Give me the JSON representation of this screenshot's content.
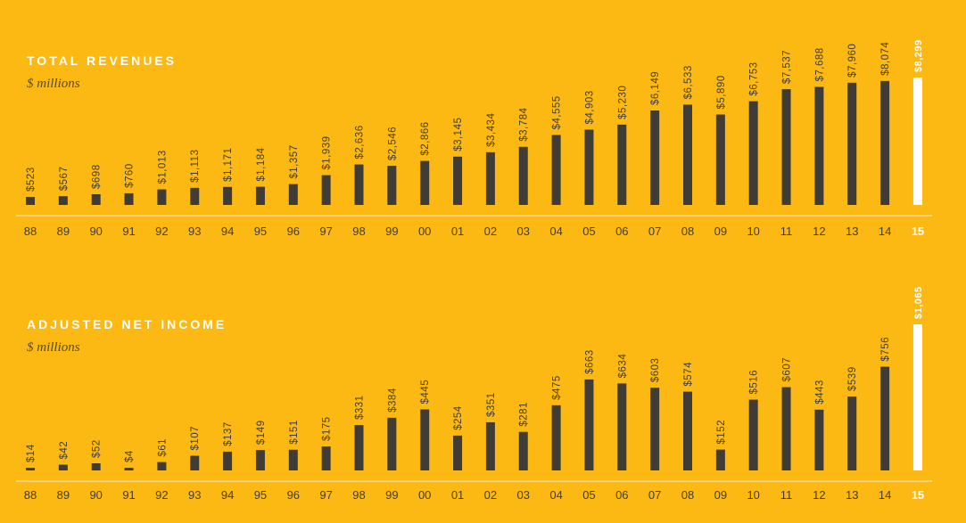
{
  "chart_data": [
    {
      "type": "bar",
      "title": "TOTAL REVENUES",
      "subtitle": "$ millions",
      "categories": [
        "88",
        "89",
        "90",
        "91",
        "92",
        "93",
        "94",
        "95",
        "96",
        "97",
        "98",
        "99",
        "00",
        "01",
        "02",
        "03",
        "04",
        "05",
        "06",
        "07",
        "08",
        "09",
        "10",
        "11",
        "12",
        "13",
        "14",
        "15"
      ],
      "values": [
        523,
        567,
        698,
        760,
        1013,
        1113,
        1171,
        1184,
        1357,
        1939,
        2636,
        2546,
        2866,
        3145,
        3434,
        3784,
        4555,
        4903,
        5230,
        6149,
        6533,
        5890,
        6753,
        7537,
        7688,
        7960,
        8074,
        8299
      ],
      "value_labels": [
        "$523",
        "$567",
        "$698",
        "$760",
        "$1,013",
        "$1,113",
        "$1,171",
        "$1,184",
        "$1,357",
        "$1,939",
        "$2,636",
        "$2,546",
        "$2,866",
        "$3,145",
        "$3,434",
        "$3,784",
        "$4,555",
        "$4,903",
        "$5,230",
        "$6,149",
        "$6,533",
        "$5,890",
        "$6,753",
        "$7,537",
        "$7,688",
        "$7,960",
        "$8,074",
        "$8,299"
      ],
      "highlight_index": 27,
      "ylim": [
        0,
        8299
      ],
      "xlabel": "",
      "ylabel": "",
      "grid": false
    },
    {
      "type": "bar",
      "title": "ADJUSTED NET INCOME",
      "subtitle": "$ millions",
      "categories": [
        "88",
        "89",
        "90",
        "91",
        "92",
        "93",
        "94",
        "95",
        "96",
        "97",
        "98",
        "99",
        "00",
        "01",
        "02",
        "03",
        "04",
        "05",
        "06",
        "07",
        "08",
        "09",
        "10",
        "11",
        "12",
        "13",
        "14",
        "15"
      ],
      "values": [
        14,
        42,
        52,
        4,
        61,
        107,
        137,
        149,
        151,
        175,
        331,
        384,
        445,
        254,
        351,
        281,
        475,
        663,
        634,
        603,
        574,
        152,
        516,
        607,
        443,
        539,
        756,
        1065
      ],
      "value_labels": [
        "$14",
        "$42",
        "$52",
        "$4",
        "$61",
        "$107",
        "$137",
        "$149",
        "$151",
        "$175",
        "$331",
        "$384",
        "$445",
        "$254",
        "$351",
        "$281",
        "$475",
        "$663",
        "$634",
        "$603",
        "$574",
        "$152",
        "$516",
        "$607",
        "$443",
        "$539",
        "$756",
        "$1,065"
      ],
      "highlight_index": 27,
      "ylim": [
        0,
        1065
      ],
      "xlabel": "",
      "ylabel": "",
      "grid": false
    }
  ],
  "colors": {
    "background": "#FDB913",
    "bar": "#3f3c37",
    "highlight_bar": "#ffffff",
    "label": "#3f3c37",
    "highlight_label": "#ffffff",
    "baseline": "#ffffff"
  }
}
